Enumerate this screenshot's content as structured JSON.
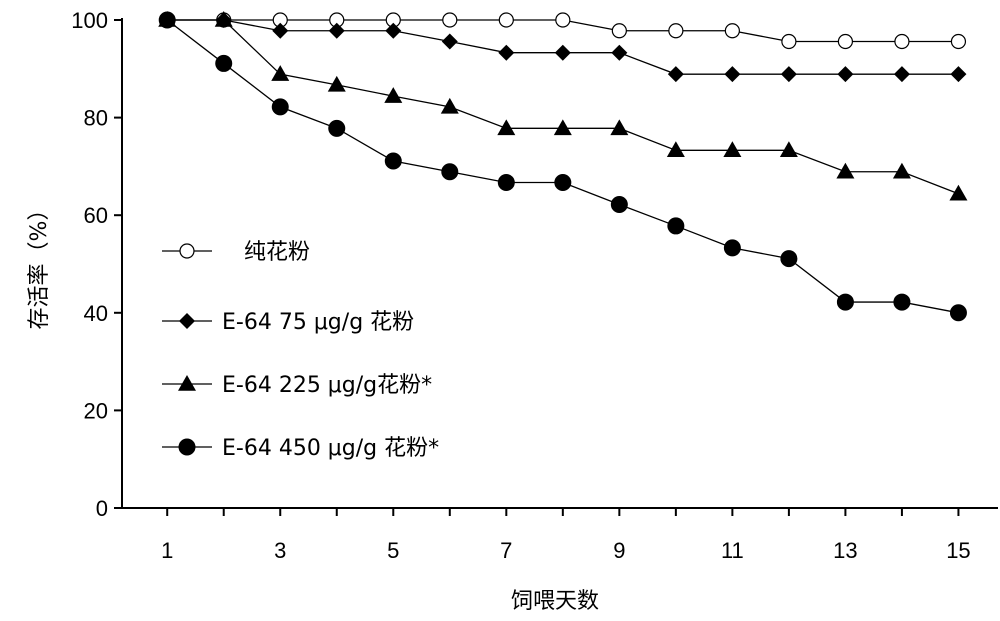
{
  "chart_data": {
    "type": "line",
    "xlabel": "饲喂天数",
    "ylabel": "存活率（%）",
    "x": [
      1,
      2,
      3,
      4,
      5,
      6,
      7,
      8,
      9,
      10,
      11,
      12,
      13,
      14,
      15
    ],
    "x_ticks": [
      1,
      3,
      5,
      7,
      9,
      11,
      13,
      15
    ],
    "y_ticks": [
      0,
      20,
      40,
      60,
      80,
      100
    ],
    "xlim": [
      0.2,
      15.7
    ],
    "ylim": [
      0,
      100
    ],
    "grid": false,
    "legend_position": "left-center",
    "series": [
      {
        "name": "纯花粉",
        "marker": "circle-open",
        "values": [
          100,
          100,
          100,
          100,
          100,
          100,
          100,
          100,
          97.8,
          97.8,
          97.8,
          95.6,
          95.6,
          95.6,
          95.6
        ]
      },
      {
        "name": "E-64 75 μg/g 花粉",
        "marker": "diamond",
        "values": [
          100,
          100,
          97.8,
          97.8,
          97.8,
          95.6,
          93.3,
          93.3,
          93.3,
          88.9,
          88.9,
          88.9,
          88.9,
          88.9,
          88.9
        ]
      },
      {
        "name": "E-64 225 μg/g花粉*",
        "marker": "triangle",
        "values": [
          100,
          100,
          88.9,
          86.7,
          84.4,
          82.2,
          77.8,
          77.8,
          77.8,
          73.3,
          73.3,
          73.3,
          68.9,
          68.9,
          64.4
        ]
      },
      {
        "name": "E-64 450 μg/g 花粉*",
        "marker": "circle-filled",
        "values": [
          100,
          91.1,
          82.2,
          77.8,
          71.1,
          68.9,
          66.7,
          66.7,
          62.2,
          57.8,
          53.3,
          51.1,
          42.2,
          42.2,
          40.0
        ]
      }
    ]
  }
}
